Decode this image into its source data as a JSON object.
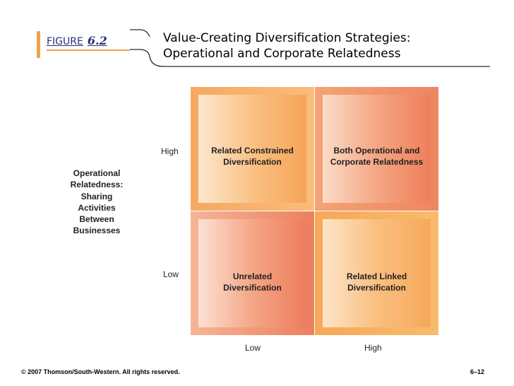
{
  "header": {
    "figure_word": "FIGURE",
    "figure_number": "6.2",
    "title_line1": "Value-Creating Diversification Strategies:",
    "title_line2": "Operational and Corporate Relatedness"
  },
  "matrix": {
    "y_axis_label": "Operational Relatedness: Sharing Activities Between Businesses",
    "y_axis_label_lines": [
      "Operational",
      "Relatedness:",
      "Sharing",
      "Activities",
      "Between",
      "Businesses"
    ],
    "y_high": "High",
    "y_low": "Low",
    "x_low": "Low",
    "x_high": "High",
    "quadrants": {
      "top_left": [
        "Related Constrained",
        "Diversification"
      ],
      "top_right": [
        "Both Operational and",
        "Corporate Relatedness"
      ],
      "bottom_left": [
        "Unrelated",
        "Diversification"
      ],
      "bottom_right": [
        "Related Linked",
        "Diversification"
      ]
    }
  },
  "footer": {
    "copyright": "© 2007 Thomson/South-Western. All rights reserved.",
    "slide_number": "6–12"
  },
  "colors": {
    "accent": "#f2a14a",
    "figure_label": "#2a2f7a"
  }
}
